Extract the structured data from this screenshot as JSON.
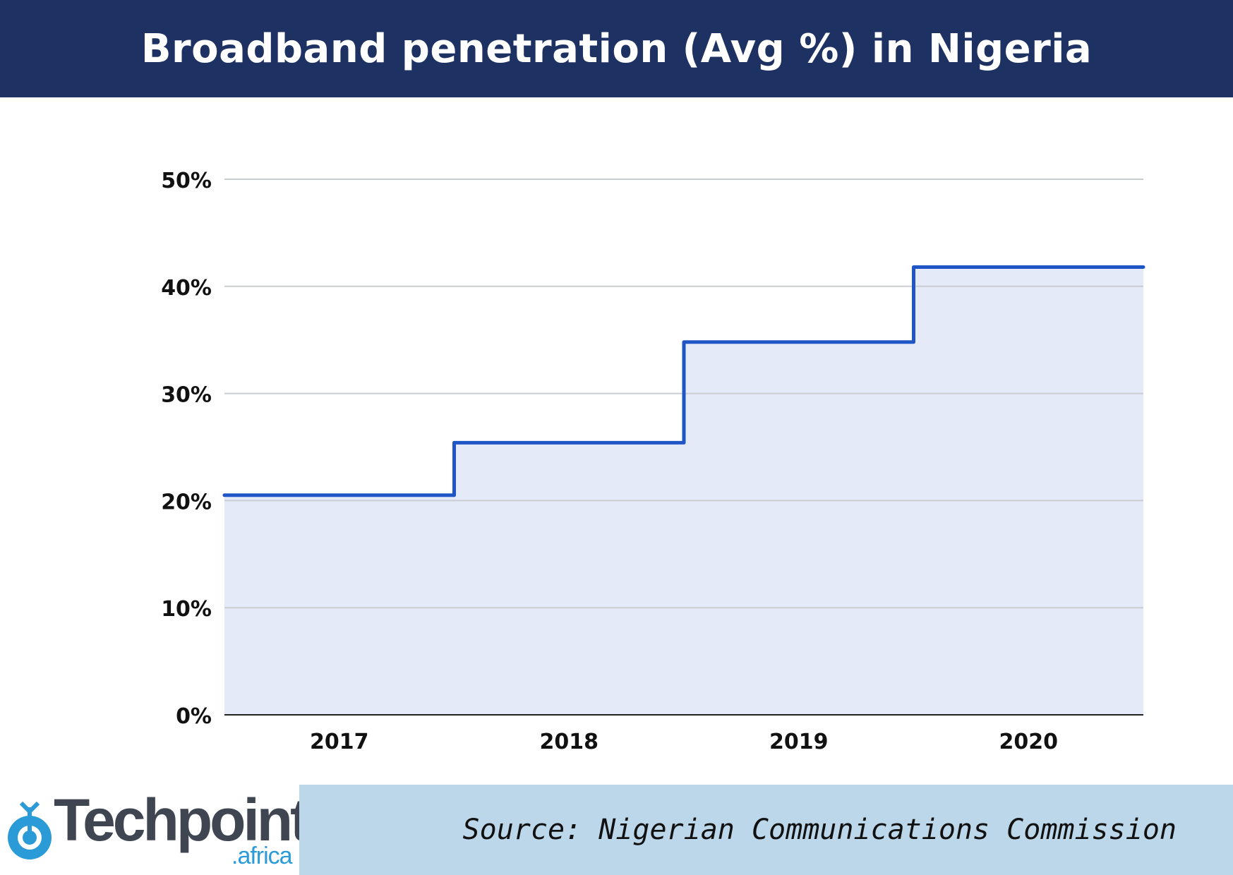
{
  "header": {
    "title": "Broadband penetration (Avg %) in Nigeria"
  },
  "chart_data": {
    "type": "line",
    "step": true,
    "title": "Broadband penetration (Avg %) in Nigeria",
    "xlabel": "",
    "ylabel": "",
    "categories": [
      "2017",
      "2018",
      "2019",
      "2020"
    ],
    "series": [
      {
        "values": [
          20.5,
          25.4,
          34.8,
          41.8
        ]
      }
    ],
    "ylim": [
      0,
      50
    ],
    "yticks": [
      0,
      10,
      20,
      30,
      40,
      50
    ],
    "ytick_labels": [
      "0%",
      "10%",
      "20%",
      "30%",
      "40%",
      "50%"
    ],
    "grid": true,
    "filled_area": true,
    "colors": {
      "line": "#1f55c4",
      "fill": "#e4eaf8",
      "grid": "#c9ccd2",
      "axis": "#222222"
    }
  },
  "footer": {
    "logo_text": "Techpoint",
    "logo_suffix": ".africa",
    "source": "Source: Nigerian Communications Commission",
    "colors": {
      "source_bg": "#bcd7ea",
      "logo_blue": "#2a9bd7",
      "logo_gray": "#3f4652"
    }
  }
}
